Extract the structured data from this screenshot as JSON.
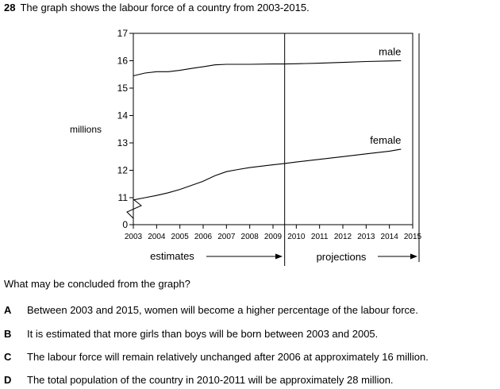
{
  "question": {
    "number": "28",
    "text": "The graph shows the labour force of a country from 2003-2015."
  },
  "chart_data": {
    "type": "line",
    "ylabel": "millions",
    "y_ticks": [
      "0",
      "11",
      "12",
      "13",
      "14",
      "15",
      "16",
      "17"
    ],
    "x_ticks": [
      "2003",
      "2004",
      "2005",
      "2006",
      "2007",
      "2008",
      "2009",
      "2010",
      "2011",
      "2012",
      "2013",
      "2014",
      "2015"
    ],
    "ylim": [
      11,
      17
    ],
    "axis_break": true,
    "grid": false,
    "divider_year": 2009.5,
    "series": [
      {
        "name": "male",
        "x": [
          2003.0,
          2003.5,
          2004.0,
          2004.5,
          2005.0,
          2005.5,
          2006.0,
          2006.5,
          2007.0,
          2008.0,
          2009.0,
          2009.5,
          2010.0,
          2011.0,
          2012.0,
          2013.0,
          2014.0,
          2014.5
        ],
        "values": [
          15.45,
          15.55,
          15.6,
          15.6,
          15.65,
          15.72,
          15.78,
          15.85,
          15.87,
          15.87,
          15.88,
          15.88,
          15.89,
          15.91,
          15.94,
          15.97,
          15.99,
          16.0
        ]
      },
      {
        "name": "female",
        "x": [
          2003.0,
          2003.5,
          2004.0,
          2004.5,
          2005.0,
          2005.5,
          2006.0,
          2006.5,
          2007.0,
          2007.5,
          2008.0,
          2008.5,
          2009.0,
          2009.5,
          2010.0,
          2011.0,
          2012.0,
          2013.0,
          2014.0,
          2014.5
        ],
        "values": [
          10.92,
          11.0,
          11.08,
          11.18,
          11.3,
          11.45,
          11.6,
          11.8,
          11.95,
          12.03,
          12.1,
          12.15,
          12.2,
          12.25,
          12.3,
          12.4,
          12.5,
          12.6,
          12.7,
          12.77
        ]
      }
    ],
    "annotations": {
      "estimates": "estimates",
      "projections": "projections"
    }
  },
  "prompt": "What may be concluded from the graph?",
  "options": [
    {
      "letter": "A",
      "text": "Between 2003 and 2015, women will become a higher percentage of the labour force."
    },
    {
      "letter": "B",
      "text": "It is estimated that more girls than boys will be born between 2003 and 2005."
    },
    {
      "letter": "C",
      "text": "The labour force will remain relatively unchanged after 2006 at approximately 16 million."
    },
    {
      "letter": "D",
      "text": "The total population of the country in 2010-2011 will be approximately 28 million."
    }
  ]
}
